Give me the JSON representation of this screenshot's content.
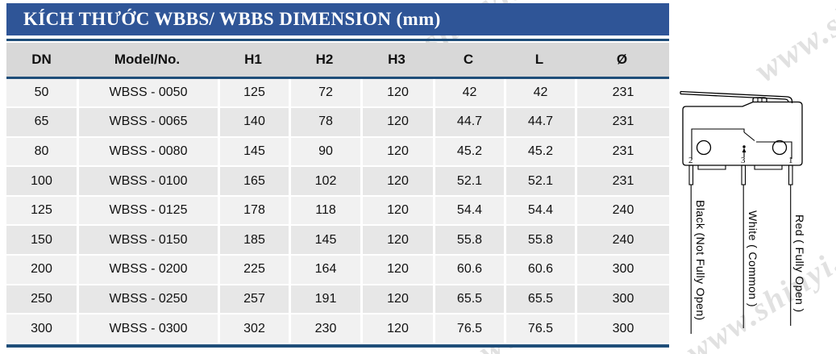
{
  "title": "KÍCH THƯỚC WBBS/ WBBS DIMENSION (mm)",
  "watermark": {
    "text": "www.shinyi.vn"
  },
  "table": {
    "columns": [
      "DN",
      "Model/No.",
      "H1",
      "H2",
      "H3",
      "C",
      "L",
      "Ø"
    ],
    "rows": [
      [
        "50",
        "WBSS - 0050",
        "125",
        "72",
        "120",
        "42",
        "42",
        "231"
      ],
      [
        "65",
        "WBSS - 0065",
        "140",
        "78",
        "120",
        "44.7",
        "44.7",
        "231"
      ],
      [
        "80",
        "WBSS - 0080",
        "145",
        "90",
        "120",
        "45.2",
        "45.2",
        "231"
      ],
      [
        "100",
        "WBSS - 0100",
        "165",
        "102",
        "120",
        "52.1",
        "52.1",
        "231"
      ],
      [
        "125",
        "WBSS - 0125",
        "178",
        "118",
        "120",
        "54.4",
        "54.4",
        "240"
      ],
      [
        "150",
        "WBSS - 0150",
        "185",
        "145",
        "120",
        "55.8",
        "55.8",
        "240"
      ],
      [
        "200",
        "WBSS - 0200",
        "225",
        "164",
        "120",
        "60.6",
        "60.6",
        "300"
      ],
      [
        "250",
        "WBSS - 0250",
        "257",
        "191",
        "120",
        "65.5",
        "65.5",
        "300"
      ],
      [
        "300",
        "WBSS - 0300",
        "302",
        "230",
        "120",
        "76.5",
        "76.5",
        "300"
      ]
    ]
  },
  "diagram": {
    "terminals": [
      "2",
      "3",
      "1"
    ],
    "labels": {
      "black": "Black (Not Fully Open)",
      "white": "White ( Common )",
      "red": "Red ( Fully Open )"
    }
  },
  "colors": {
    "header_bar": "#2f5597",
    "divider_line": "#1f4e79",
    "table_header_bg": "#d8d8d8",
    "row_light": "#f1f1f1",
    "row_dark": "#e7e7e7",
    "watermark": "#b9b9b9"
  }
}
